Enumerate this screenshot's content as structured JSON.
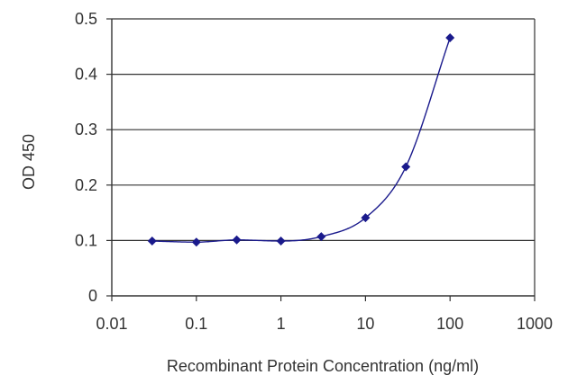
{
  "chart_data": {
    "type": "scatter",
    "x_scale": "log",
    "xlabel": "Recombinant Protein Concentration (ng/ml)",
    "ylabel": "OD 450",
    "xlim": [
      0.01,
      1000
    ],
    "ylim": [
      0,
      0.5
    ],
    "x_ticks": [
      "0.01",
      "0.1",
      "1",
      "10",
      "100",
      "1000"
    ],
    "y_ticks": [
      "0",
      "0.1",
      "0.2",
      "0.3",
      "0.4",
      "0.5"
    ],
    "grid": "horizontal",
    "series": [
      {
        "x": [
          0.03,
          0.1,
          0.3,
          1,
          3,
          10,
          30,
          100
        ],
        "y": [
          0.099,
          0.097,
          0.101,
          0.099,
          0.107,
          0.141,
          0.233,
          0.466
        ],
        "marker": "diamond",
        "fit_line": true
      }
    ],
    "colors": {
      "series": "#1a1a8c",
      "grid": "#333333",
      "axis": "#333333"
    }
  }
}
